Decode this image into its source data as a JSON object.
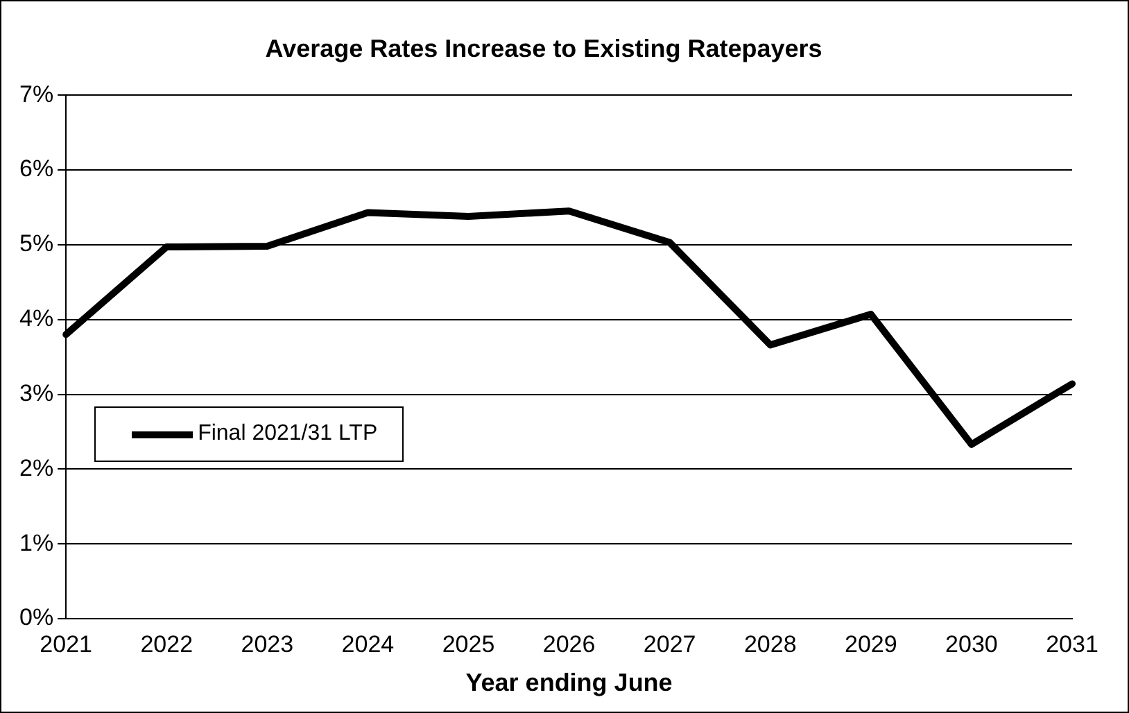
{
  "chart_data": {
    "type": "line",
    "title": "Average Rates Increase to Existing Ratepayers",
    "xlabel": "Year ending June",
    "categories": [
      "2021",
      "2022",
      "2023",
      "2024",
      "2025",
      "2026",
      "2027",
      "2028",
      "2029",
      "2030",
      "2031"
    ],
    "series": [
      {
        "name": "Final 2021/31 LTP",
        "color": "#000000",
        "values": [
          3.8,
          4.97,
          4.98,
          5.43,
          5.38,
          5.45,
          5.03,
          3.66,
          4.07,
          2.33,
          3.14
        ]
      }
    ],
    "ylim": [
      0,
      7
    ],
    "yticks": [
      {
        "value": 0,
        "label": "0%"
      },
      {
        "value": 1,
        "label": "1%"
      },
      {
        "value": 2,
        "label": "2%"
      },
      {
        "value": 3,
        "label": "3%"
      },
      {
        "value": 4,
        "label": "4%"
      },
      {
        "value": 5,
        "label": "5%"
      },
      {
        "value": 6,
        "label": "6%"
      },
      {
        "value": 7,
        "label": "7%"
      }
    ],
    "grid": "y",
    "legend": "bottom left",
    "marker": "none",
    "line_style": "solid"
  }
}
